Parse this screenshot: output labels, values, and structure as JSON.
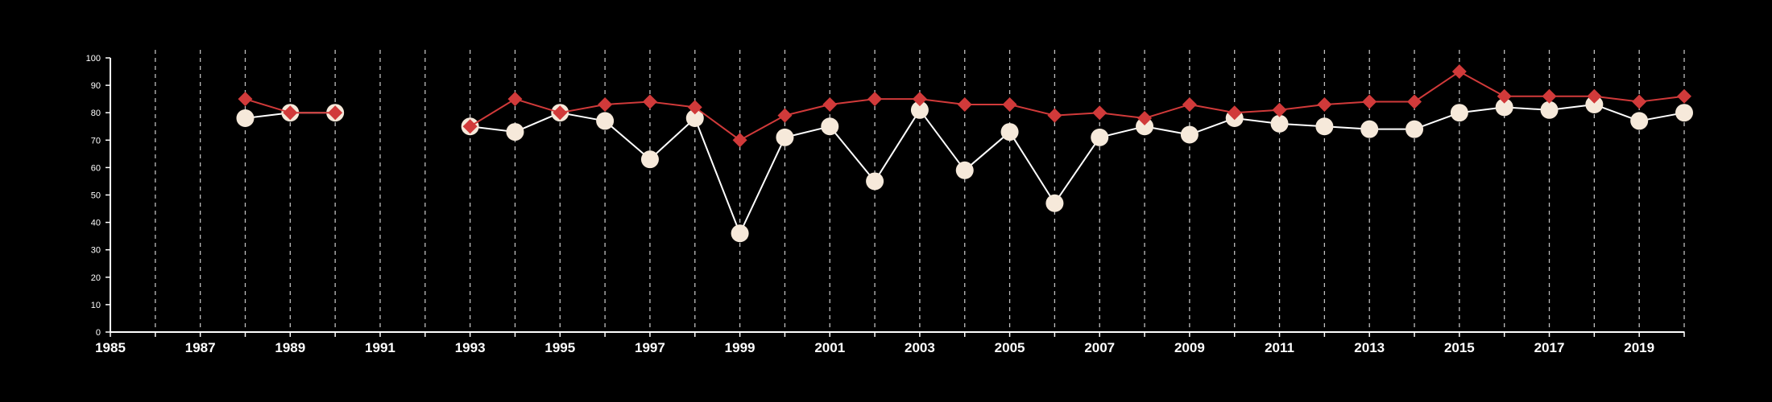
{
  "chart_data": {
    "type": "line",
    "title": "",
    "xlabel": "",
    "ylabel": "",
    "xlim": [
      1985,
      2020
    ],
    "ylim": [
      0,
      100
    ],
    "x_ticks": [
      1985,
      1987,
      1989,
      1991,
      1993,
      1995,
      1997,
      1999,
      2001,
      2003,
      2005,
      2007,
      2009,
      2011,
      2013,
      2015,
      2017,
      2019
    ],
    "x_tick_labels": [
      "1985",
      "1987",
      "1989",
      "1991",
      "1993",
      "1995",
      "1997",
      "1999",
      "2001",
      "2003",
      "2005",
      "2007",
      "2009",
      "2011",
      "2013",
      "2015",
      "2017",
      "2019"
    ],
    "y_ticks": [
      0,
      10,
      20,
      30,
      40,
      50,
      60,
      70,
      80,
      90,
      100
    ],
    "y_tick_labels": [
      "0",
      "10",
      "20",
      "30",
      "40",
      "50",
      "60",
      "70",
      "80",
      "90",
      "100"
    ],
    "grid": "vertical dashed gridlines at every year",
    "legend": "none",
    "series": [
      {
        "marker": "circle",
        "color": "#f6e9da",
        "line_color": "#ffffff",
        "x": [
          1988,
          1989,
          1990,
          1993,
          1994,
          1995,
          1996,
          1997,
          1998,
          1999,
          2000,
          2001,
          2002,
          2003,
          2004,
          2005,
          2006,
          2007,
          2008,
          2009,
          2010,
          2011,
          2012,
          2013,
          2014,
          2015,
          2016,
          2017,
          2018,
          2019,
          2020
        ],
        "values": [
          78,
          80,
          80,
          75,
          73,
          80,
          77,
          63,
          78,
          36,
          71,
          75,
          55,
          81,
          59,
          73,
          47,
          71,
          75,
          72,
          78,
          76,
          75,
          74,
          74,
          80,
          82,
          81,
          83,
          77,
          80
        ]
      },
      {
        "marker": "diamond",
        "color": "#d13a3a",
        "line_color": "#d13a3a",
        "x": [
          1988,
          1989,
          1990,
          1993,
          1994,
          1995,
          1996,
          1997,
          1998,
          1999,
          2000,
          2001,
          2002,
          2003,
          2004,
          2005,
          2006,
          2007,
          2008,
          2009,
          2010,
          2011,
          2012,
          2013,
          2014,
          2015,
          2016,
          2017,
          2018,
          2019,
          2020
        ],
        "values": [
          85,
          80,
          80,
          75,
          85,
          80,
          83,
          84,
          82,
          70,
          79,
          83,
          85,
          85,
          83,
          83,
          79,
          80,
          78,
          83,
          80,
          81,
          83,
          84,
          84,
          95,
          86,
          86,
          86,
          84,
          86
        ]
      }
    ]
  }
}
